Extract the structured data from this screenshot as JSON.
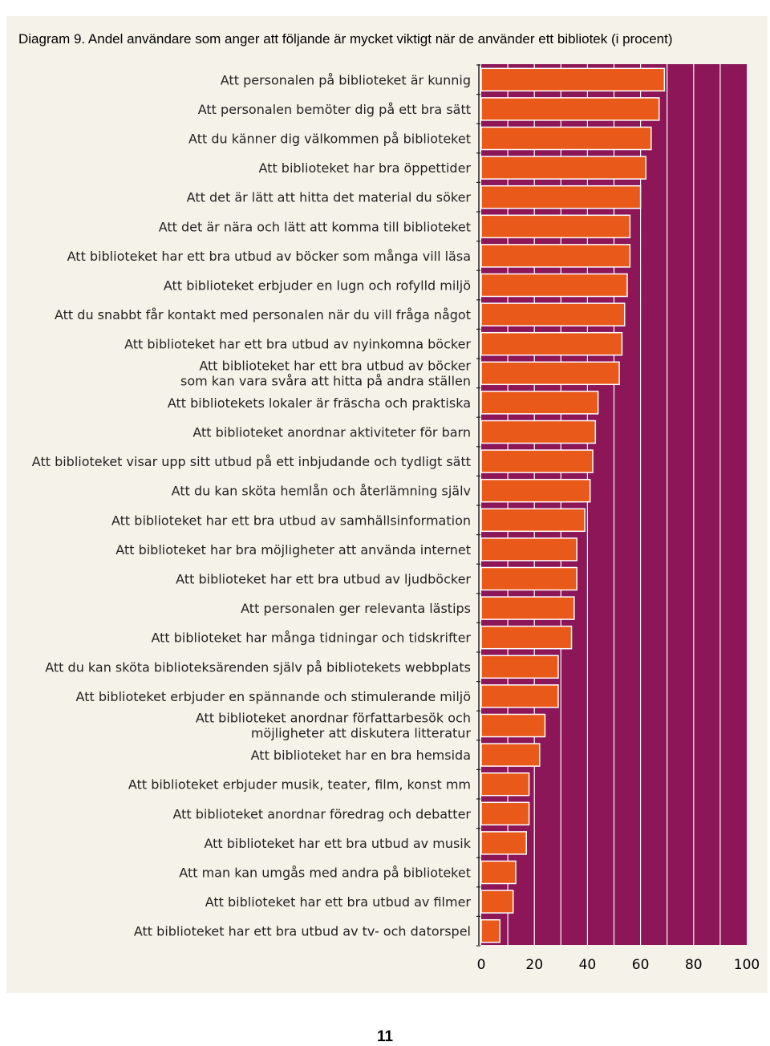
{
  "chart_data": {
    "type": "bar",
    "orientation": "horizontal",
    "title": "Diagram 9. Andel användare som anger att följande är mycket viktigt när de använder ett bibliotek (i procent)",
    "xlabel": "",
    "ylabel": "",
    "xlim": [
      0,
      100
    ],
    "xticks": [
      0,
      20,
      40,
      60,
      80,
      100
    ],
    "grid": true,
    "categories": [
      [
        "Att personalen på biblioteket är kunnig"
      ],
      [
        "Att personalen bemöter dig på ett bra sätt"
      ],
      [
        "Att du känner dig välkommen på biblioteket"
      ],
      [
        "Att biblioteket har bra öppettider"
      ],
      [
        "Att det är lätt att hitta det material du söker"
      ],
      [
        "Att det är nära och lätt att komma till biblioteket"
      ],
      [
        "Att biblioteket har ett bra utbud av böcker som många vill läsa"
      ],
      [
        "Att biblioteket erbjuder en lugn och rofylld miljö"
      ],
      [
        "Att du snabbt får kontakt med personalen när du vill fråga något"
      ],
      [
        "Att biblioteket har ett bra utbud av nyinkomna böcker"
      ],
      [
        "Att biblioteket har ett bra utbud av böcker",
        "som kan vara svåra att hitta på andra ställen"
      ],
      [
        "Att bibliotekets lokaler är fräscha och praktiska"
      ],
      [
        "Att biblioteket anordnar aktiviteter för barn"
      ],
      [
        "Att biblioteket visar upp sitt utbud på ett inbjudande och tydligt sätt"
      ],
      [
        "Att du kan sköta hemlån och återlämning själv"
      ],
      [
        "Att biblioteket har ett bra utbud av samhällsinformation"
      ],
      [
        "Att biblioteket har bra möjligheter att använda internet"
      ],
      [
        "Att biblioteket har ett bra utbud av ljudböcker"
      ],
      [
        "Att personalen ger relevanta lästips"
      ],
      [
        "Att biblioteket har många tidningar och tidskrifter"
      ],
      [
        "Att du kan sköta biblioteksärenden själv på bibliotekets webbplats"
      ],
      [
        "Att biblioteket erbjuder en spännande och stimulerande miljö"
      ],
      [
        "Att biblioteket anordnar författarbesök och",
        "möjligheter att diskutera litteratur"
      ],
      [
        "Att biblioteket har en bra hemsida"
      ],
      [
        "Att biblioteket erbjuder musik, teater, film, konst mm"
      ],
      [
        "Att biblioteket anordnar föredrag och debatter"
      ],
      [
        "Att biblioteket har ett bra utbud av musik"
      ],
      [
        "Att man kan umgås med andra på biblioteket"
      ],
      [
        "Att biblioteket har ett bra utbud av filmer"
      ],
      [
        "Att biblioteket har ett bra utbud av tv- och datorspel"
      ]
    ],
    "values": [
      69,
      67,
      64,
      62,
      60,
      56,
      56,
      55,
      54,
      53,
      52,
      44,
      43,
      42,
      41,
      39,
      36,
      36,
      35,
      34,
      29,
      29,
      24,
      22,
      18,
      18,
      17,
      13,
      12,
      7
    ],
    "colors": {
      "bar": "#e8591a",
      "plot_background": "#8c1657",
      "gridline": "#ffffff",
      "panel_background": "#f5f2ea",
      "text": "#231f20"
    }
  },
  "page": {
    "number": "11"
  }
}
